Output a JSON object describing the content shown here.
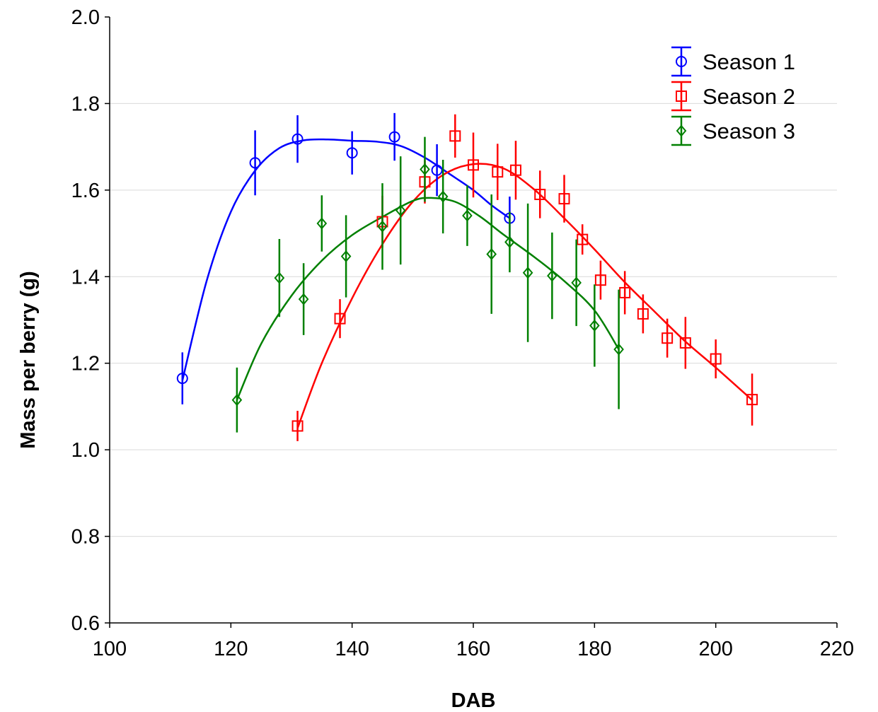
{
  "chart_data": {
    "type": "scatter",
    "title": "",
    "xlabel": "DAB",
    "ylabel": "Mass per berry (g)",
    "xlim": [
      100,
      220
    ],
    "ylim": [
      0.6,
      2.0
    ],
    "x_ticks": [
      "100",
      "120",
      "140",
      "160",
      "180",
      "200",
      "220"
    ],
    "y_ticks": [
      "0.6",
      "0.8",
      "1.0",
      "1.2",
      "1.4",
      "1.6",
      "1.8",
      "2.0"
    ],
    "grid": "horizontal",
    "legend_position": "top-right",
    "series": [
      {
        "name": "Season 1",
        "color": "#0000ff",
        "marker": "circle",
        "x": [
          112,
          124,
          131,
          140,
          147,
          154,
          166
        ],
        "y": [
          1.165,
          1.663,
          1.718,
          1.686,
          1.723,
          1.646,
          1.535
        ],
        "err": [
          0.06,
          0.075,
          0.055,
          0.05,
          0.055,
          0.06,
          0.05
        ],
        "fit": [
          [
            112,
            1.16
          ],
          [
            116,
            1.39
          ],
          [
            120,
            1.55
          ],
          [
            124,
            1.645
          ],
          [
            128,
            1.697
          ],
          [
            132,
            1.715
          ],
          [
            136,
            1.717
          ],
          [
            140,
            1.714
          ],
          [
            144,
            1.712
          ],
          [
            148,
            1.702
          ],
          [
            152,
            1.675
          ],
          [
            156,
            1.638
          ],
          [
            160,
            1.6
          ],
          [
            163,
            1.565
          ],
          [
            166,
            1.535
          ]
        ]
      },
      {
        "name": "Season 2",
        "color": "#ff0000",
        "marker": "square",
        "x": [
          131,
          138,
          145,
          152,
          157,
          160,
          164,
          167,
          171,
          175,
          178,
          181,
          185,
          188,
          192,
          195,
          200,
          206
        ],
        "y": [
          1.055,
          1.303,
          1.527,
          1.619,
          1.725,
          1.658,
          1.642,
          1.646,
          1.59,
          1.58,
          1.486,
          1.392,
          1.363,
          1.314,
          1.258,
          1.247,
          1.21,
          1.116
        ],
        "err": [
          0.035,
          0.045,
          0.06,
          0.05,
          0.05,
          0.075,
          0.065,
          0.068,
          0.055,
          0.055,
          0.035,
          0.045,
          0.05,
          0.045,
          0.045,
          0.06,
          0.045,
          0.06
        ],
        "fit": [
          [
            131,
            1.05
          ],
          [
            135,
            1.2
          ],
          [
            140,
            1.35
          ],
          [
            145,
            1.475
          ],
          [
            150,
            1.573
          ],
          [
            155,
            1.635
          ],
          [
            160,
            1.66
          ],
          [
            165,
            1.65
          ],
          [
            170,
            1.602
          ],
          [
            175,
            1.535
          ],
          [
            180,
            1.463
          ],
          [
            185,
            1.387
          ],
          [
            190,
            1.318
          ],
          [
            195,
            1.25
          ],
          [
            200,
            1.19
          ],
          [
            206,
            1.115
          ]
        ]
      },
      {
        "name": "Season 3",
        "color": "#008000",
        "marker": "diamond",
        "x": [
          121,
          128,
          132,
          135,
          139,
          145,
          148,
          152,
          155,
          159,
          163,
          166,
          169,
          173,
          177,
          180,
          184
        ],
        "y": [
          1.115,
          1.397,
          1.348,
          1.523,
          1.447,
          1.516,
          1.553,
          1.648,
          1.585,
          1.541,
          1.452,
          1.48,
          1.409,
          1.402,
          1.386,
          1.287,
          1.232
        ],
        "err": [
          0.075,
          0.09,
          0.083,
          0.065,
          0.095,
          0.1,
          0.125,
          0.075,
          0.085,
          0.07,
          0.138,
          0.07,
          0.16,
          0.1,
          0.1,
          0.095,
          0.138
        ],
        "fit": [
          [
            121,
            1.115
          ],
          [
            125,
            1.245
          ],
          [
            130,
            1.356
          ],
          [
            135,
            1.437
          ],
          [
            140,
            1.496
          ],
          [
            145,
            1.538
          ],
          [
            150,
            1.575
          ],
          [
            153,
            1.582
          ],
          [
            157,
            1.573
          ],
          [
            161,
            1.54
          ],
          [
            165,
            1.497
          ],
          [
            170,
            1.446
          ],
          [
            175,
            1.39
          ],
          [
            180,
            1.322
          ],
          [
            184,
            1.232
          ]
        ]
      }
    ]
  }
}
